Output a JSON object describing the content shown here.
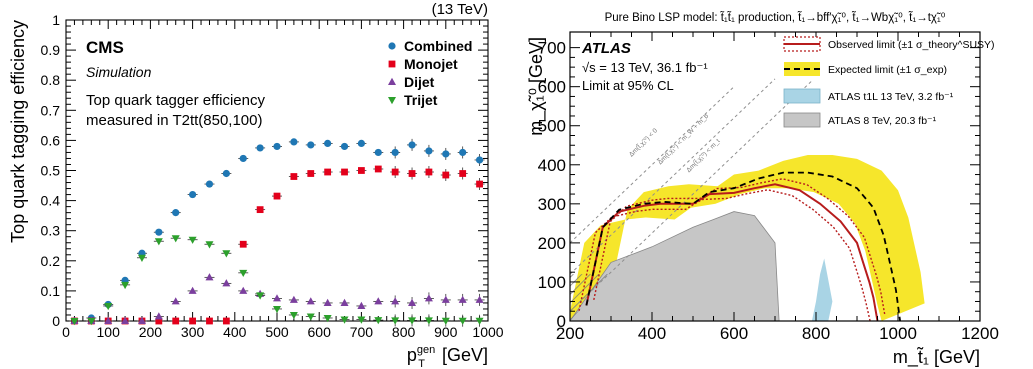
{
  "chart_data": [
    {
      "type": "scatter",
      "energy_label": "(13 TeV)",
      "experiment_label": "CMS",
      "sub_label": "Simulation",
      "info_line1": "Top quark tagger efficiency",
      "info_line2": "measured in T2tt(850,100)",
      "xlabel": "p_T^gen [GeV]",
      "ylabel": "Top quark tagging efficiency",
      "xlim": [
        0,
        1000
      ],
      "ylim": [
        0,
        1
      ],
      "xticks": [
        0,
        100,
        200,
        300,
        400,
        500,
        600,
        700,
        800,
        900,
        1000
      ],
      "yticks": [
        0,
        0.1,
        0.2,
        0.3,
        0.4,
        0.5,
        0.6,
        0.7,
        0.8,
        0.9,
        1
      ],
      "legend_position": "top-right",
      "x": [
        20,
        60,
        100,
        140,
        180,
        220,
        260,
        300,
        340,
        380,
        420,
        460,
        500,
        540,
        580,
        620,
        660,
        700,
        740,
        780,
        820,
        860,
        900,
        940,
        980
      ],
      "series": [
        {
          "name": "Combined",
          "color": "#1f77b4",
          "marker": "circle",
          "values": [
            0,
            0.01,
            0.055,
            0.135,
            0.225,
            0.295,
            0.36,
            0.42,
            0.455,
            0.49,
            0.54,
            0.575,
            0.58,
            0.595,
            0.585,
            0.59,
            0.58,
            0.59,
            0.56,
            0.56,
            0.585,
            0.565,
            0.555,
            0.56,
            0.535
          ]
        },
        {
          "name": "Monojet",
          "color": "#e3001b",
          "marker": "square",
          "values": [
            0,
            0,
            0,
            0,
            0,
            0,
            0,
            0,
            0,
            0,
            0.255,
            0.37,
            0.415,
            0.48,
            0.49,
            0.495,
            0.495,
            0.5,
            0.505,
            0.495,
            0.49,
            0.495,
            0.485,
            0.49,
            0.455
          ]
        },
        {
          "name": "Dijet",
          "color": "#7b3f9e",
          "marker": "triangle-up",
          "values": [
            0,
            0,
            0,
            0,
            0,
            0.015,
            0.065,
            0.1,
            0.145,
            0.125,
            0.1,
            0.09,
            0.075,
            0.07,
            0.065,
            0.06,
            0.06,
            0.05,
            0.065,
            0.065,
            0.06,
            0.075,
            0.07,
            0.07,
            0.07
          ]
        },
        {
          "name": "Trijet",
          "color": "#2ca02c",
          "marker": "triangle-down",
          "values": [
            0,
            0,
            0.05,
            0.12,
            0.21,
            0.265,
            0.275,
            0.27,
            0.255,
            0.225,
            0.16,
            0.085,
            0.04,
            0.02,
            0.015,
            0.01,
            0.005,
            0.005,
            0.003,
            0.002,
            0.002,
            0.002,
            0.001,
            0.001,
            0.001
          ]
        }
      ]
    },
    {
      "type": "area",
      "header": "Pure Bino LSP model: t̃₁t̃₁ production, t̃₁→bff′χ̃₁⁰, t̃₁→Wbχ̃₁⁰, t̃₁→tχ̃₁⁰",
      "experiment_label": "ATLAS",
      "energy_label": "√s = 13 TeV, 36.1 fb⁻¹",
      "cl_label": "Limit at 95% CL",
      "xlabel": "m_t̃₁ [GeV]",
      "ylabel": "m_χ̃₁⁰ [GeV]",
      "xlim": [
        200,
        1200
      ],
      "ylim": [
        0,
        740
      ],
      "xticks": [
        200,
        400,
        600,
        800,
        1000,
        1200
      ],
      "yticks": [
        0,
        100,
        200,
        300,
        400,
        500,
        600,
        700
      ],
      "legend_position": "top-right",
      "legend": [
        {
          "label": "Observed limit (±1 σ_theory^SUSY)",
          "color": "#b71c1c",
          "style": "line-with-dotted-band"
        },
        {
          "label": "Expected limit (±1 σ_exp)",
          "color": "#f6e62b",
          "style": "dashed-line-with-band"
        },
        {
          "label": "ATLAS t1L 13 TeV, 3.2 fb⁻¹",
          "color": "#a9d4e5",
          "style": "fill"
        },
        {
          "label": "ATLAS 8 TeV, 20.3 fb⁻¹",
          "color": "#c6c6c6",
          "style": "fill"
        }
      ],
      "diagonal_labels": [
        "Δm(t̃,χ̃₁⁰) < 0",
        "Δm(t̃,χ̃₁⁰) < m_W + m_b",
        "Δm(t̃,χ̃₁⁰) < m_t"
      ],
      "observed": {
        "x": [
          240,
          280,
          320,
          380,
          420,
          500,
          540,
          600,
          650,
          700,
          760,
          810,
          860,
          900,
          915,
          930,
          940,
          950
        ],
        "y": [
          40,
          240,
          280,
          295,
          300,
          300,
          325,
          328,
          340,
          350,
          335,
          300,
          255,
          200,
          150,
          100,
          60,
          0
        ]
      },
      "expected": {
        "x": [
          240,
          280,
          320,
          380,
          430,
          500,
          540,
          600,
          660,
          720,
          780,
          840,
          900,
          940,
          965,
          980,
          995,
          1005
        ],
        "y": [
          40,
          240,
          285,
          300,
          305,
          300,
          330,
          340,
          365,
          380,
          380,
          370,
          340,
          290,
          220,
          150,
          80,
          0
        ]
      },
      "atlas_8tev_region": {
        "x": [
          200,
          300,
          400,
          500,
          550,
          600,
          650,
          700,
          710,
          200
        ],
        "y": [
          0,
          150,
          190,
          240,
          260,
          280,
          270,
          200,
          0,
          0
        ]
      },
      "atlas_13tev_region": {
        "x": [
          790,
          800,
          810,
          820,
          840,
          830,
          820,
          790
        ],
        "y": [
          0,
          50,
          120,
          160,
          50,
          0,
          0,
          0
        ]
      }
    }
  ]
}
